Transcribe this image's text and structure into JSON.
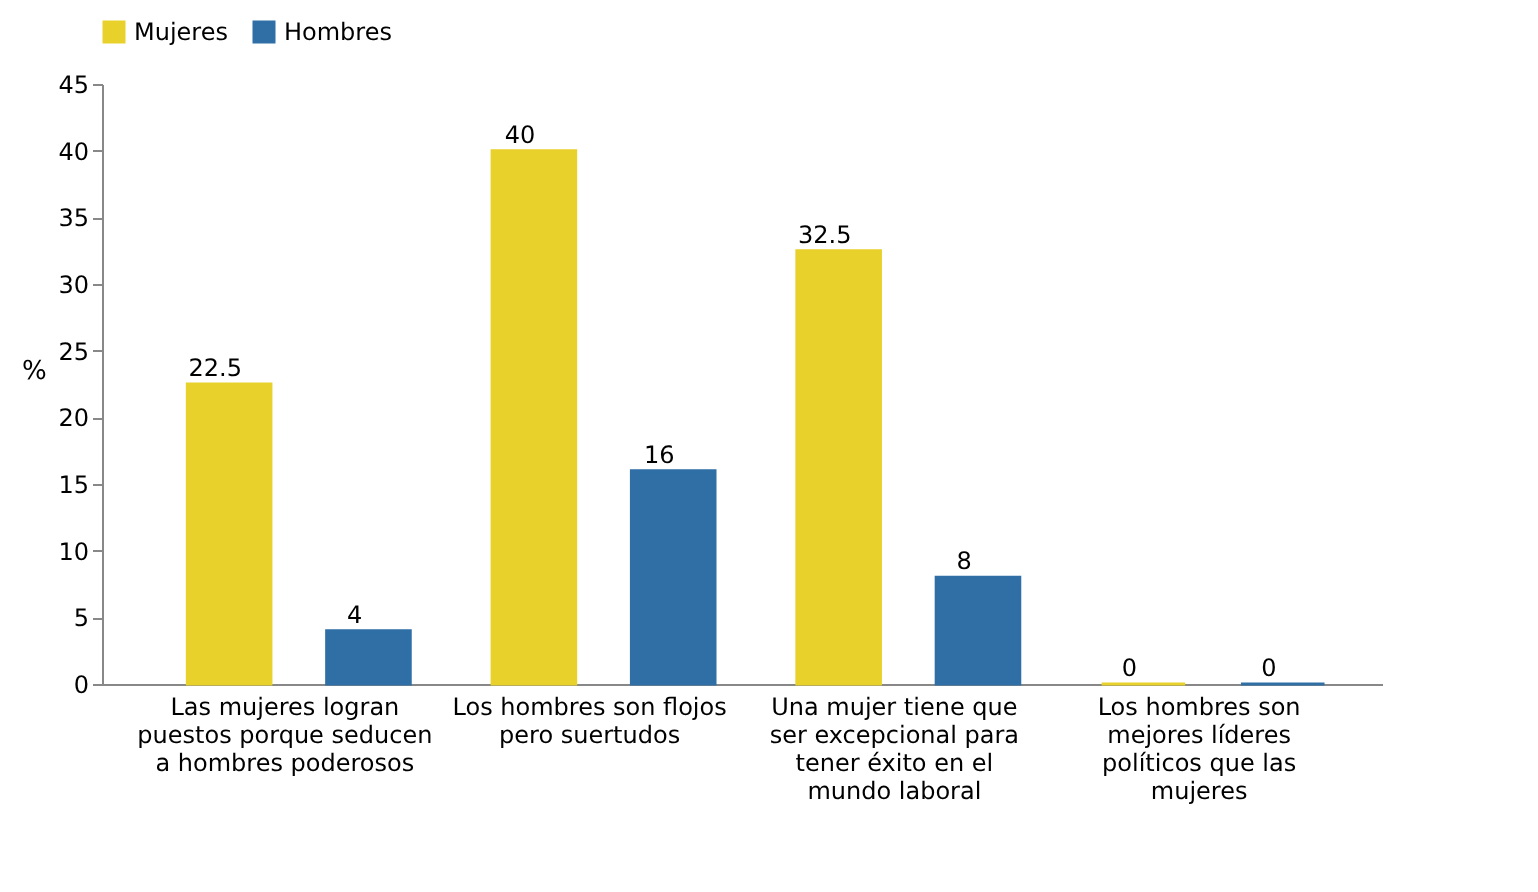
{
  "chart_data": {
    "type": "bar",
    "ylabel": "%",
    "categories": [
      "Las mujeres logran puestos porque seducen a hombres poderosos",
      "Los hombres son flojos pero suertudos",
      "Una mujer tiene que ser excepcional para tener éxito en el mundo laboral",
      "Los hombres son mejores líderes políticos que las mujeres"
    ],
    "series": [
      {
        "name": "Mujeres",
        "color": "#e8d12b",
        "values": [
          22.5,
          40,
          32.5,
          0
        ]
      },
      {
        "name": "Hombres",
        "color": "#2f6fa6",
        "values": [
          4,
          16,
          8,
          0
        ]
      }
    ],
    "ylim": [
      0,
      45
    ],
    "yticks": [
      0,
      5,
      10,
      15,
      20,
      25,
      30,
      35,
      40,
      45
    ],
    "data_labels": true,
    "legend": "top",
    "grid": false
  }
}
